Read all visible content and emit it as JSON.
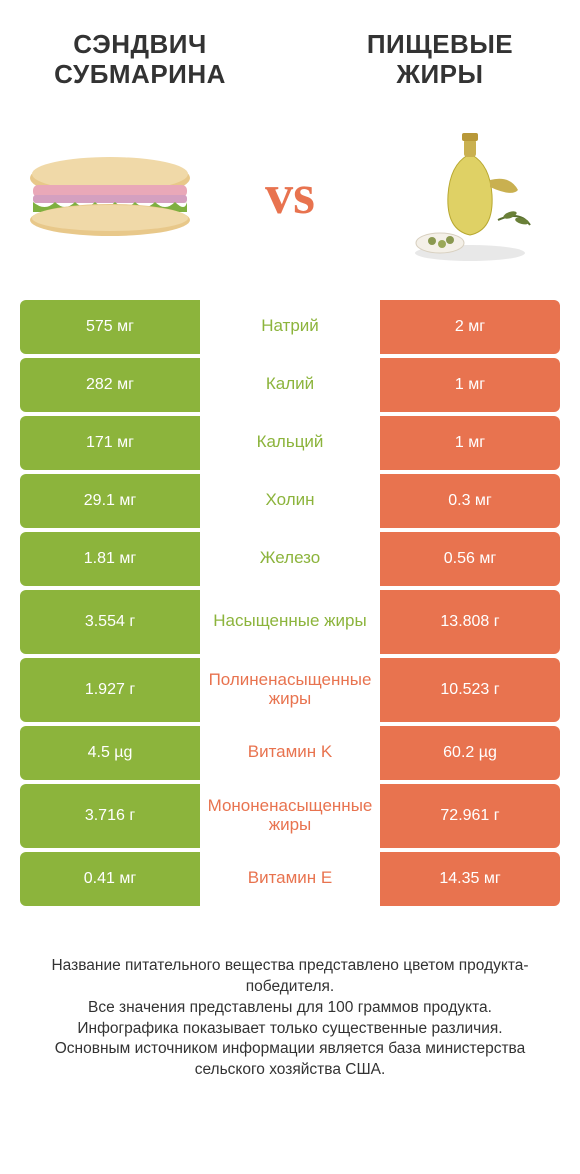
{
  "titles": {
    "left": "СЭНДВИЧ СУБМАРИНА",
    "right": "ПИЩЕВЫЕ ЖИРЫ"
  },
  "vs": "vs",
  "colors": {
    "green": "#8cb43c",
    "orange": "#e8734f",
    "text": "#333333",
    "bg": "#ffffff"
  },
  "rows": [
    {
      "left": "575 мг",
      "mid": "Натрий",
      "right": "2 мг",
      "winner": "left",
      "tall": false
    },
    {
      "left": "282 мг",
      "mid": "Калий",
      "right": "1 мг",
      "winner": "left",
      "tall": false
    },
    {
      "left": "171 мг",
      "mid": "Кальций",
      "right": "1 мг",
      "winner": "left",
      "tall": false
    },
    {
      "left": "29.1 мг",
      "mid": "Холин",
      "right": "0.3 мг",
      "winner": "left",
      "tall": false
    },
    {
      "left": "1.81 мг",
      "mid": "Железо",
      "right": "0.56 мг",
      "winner": "left",
      "tall": false
    },
    {
      "left": "3.554 г",
      "mid": "Насыщенные жиры",
      "right": "13.808 г",
      "winner": "left",
      "tall": true
    },
    {
      "left": "1.927 г",
      "mid": "Полиненасыщенные жиры",
      "right": "10.523 г",
      "winner": "right",
      "tall": true
    },
    {
      "left": "4.5 µg",
      "mid": "Витамин K",
      "right": "60.2 µg",
      "winner": "right",
      "tall": false
    },
    {
      "left": "3.716 г",
      "mid": "Мононенасыщенные жиры",
      "right": "72.961 г",
      "winner": "right",
      "tall": true
    },
    {
      "left": "0.41 мг",
      "mid": "Витамин E",
      "right": "14.35 мг",
      "winner": "right",
      "tall": false
    }
  ],
  "footer": [
    "Название питательного вещества представлено цветом продукта-победителя.",
    "Все значения представлены для 100 граммов продукта.",
    "Инфографика показывает только существенные различия.",
    "Основным источником информации является база министерства сельского хозяйства США."
  ]
}
